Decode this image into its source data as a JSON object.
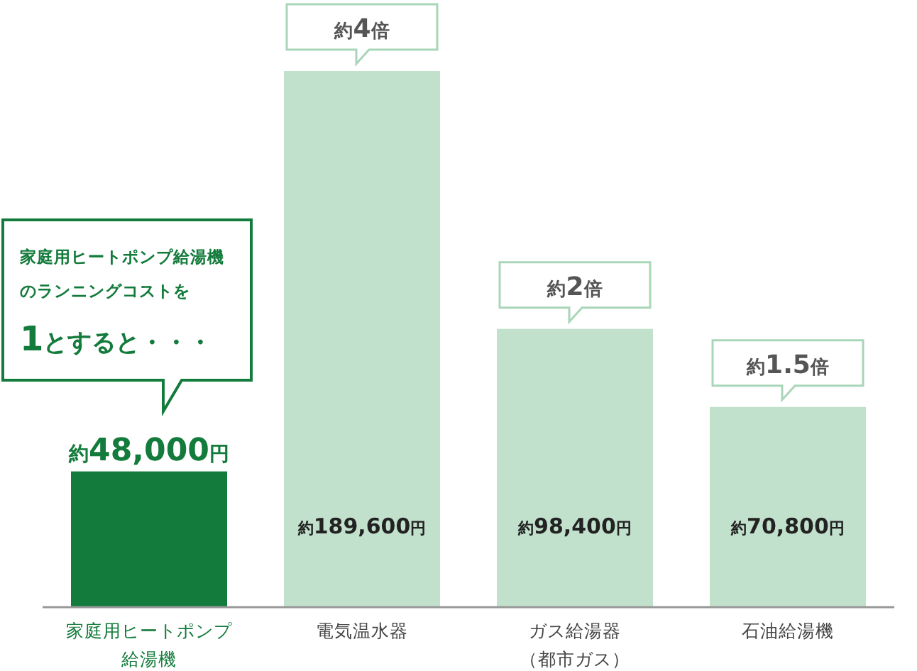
{
  "chart_data": {
    "type": "bar",
    "categories": [
      "家庭用ヒートポンプ給湯機",
      "電気温水器",
      "ガス給湯器（都市ガス）",
      "石油給湯機"
    ],
    "values": [
      48000,
      189600,
      98400,
      70800
    ],
    "colors": [
      "#137b3b",
      "#c2e1cc",
      "#c2e1cc",
      "#c2e1cc"
    ],
    "value_labels": [
      "約48,000円",
      "約189,600円",
      "約98,400円",
      "約70,800円"
    ],
    "annotations": [
      "家庭用ヒートポンプ給湯機のランニングコストを1とすると・・・",
      "約4倍",
      "約2倍",
      "約1.5倍"
    ]
  }
}
